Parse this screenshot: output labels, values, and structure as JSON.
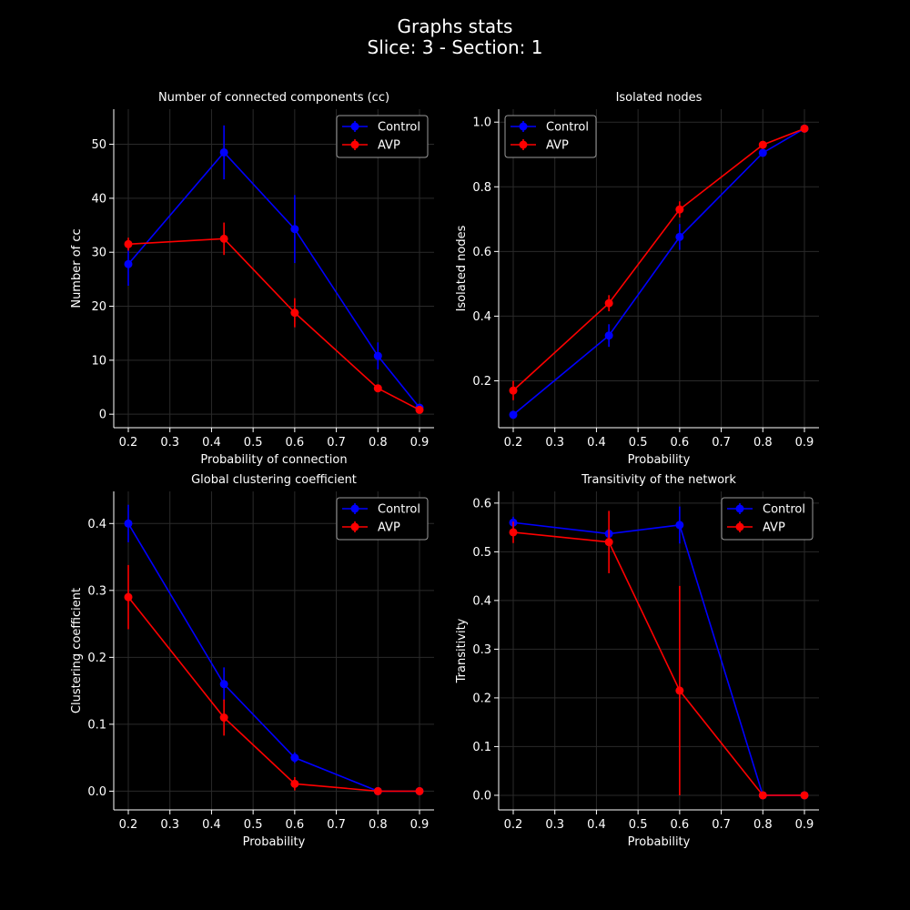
{
  "figure": {
    "title_line1": "Graphs stats",
    "title_line2": "Slice: 3  -  Section: 1"
  },
  "colors": {
    "Control": "#0000ff",
    "AVP": "#ff0000",
    "grid": "#2a2a2a",
    "axis": "#ffffff"
  },
  "chart_data": [
    {
      "type": "line",
      "title": "Number of connected components (cc)",
      "xlabel": "Probability of connection",
      "ylabel": "Number of cc",
      "x": [
        0.2,
        0.43,
        0.6,
        0.8,
        0.9
      ],
      "xlim": [
        0.165,
        0.935
      ],
      "ylim": [
        -2.5,
        56.5
      ],
      "xticks": [
        "0.2",
        "0.3",
        "0.4",
        "0.5",
        "0.6",
        "0.7",
        "0.8",
        "0.9"
      ],
      "yticks": [
        0,
        10,
        20,
        30,
        40,
        50
      ],
      "legend": "top-right",
      "grid": true,
      "series": [
        {
          "name": "Control",
          "values": [
            27.8,
            48.5,
            34.3,
            10.8,
            1.2
          ],
          "errors": [
            4.0,
            5.0,
            6.3,
            2.5,
            0.6
          ]
        },
        {
          "name": "AVP",
          "values": [
            31.5,
            32.5,
            18.8,
            4.8,
            0.8
          ],
          "errors": [
            1.2,
            3.0,
            2.7,
            0.7,
            0.3
          ]
        }
      ]
    },
    {
      "type": "line",
      "title": "Isolated nodes",
      "xlabel": "Probability",
      "ylabel": "Isolated nodes",
      "x": [
        0.2,
        0.43,
        0.6,
        0.8,
        0.9
      ],
      "xlim": [
        0.165,
        0.935
      ],
      "ylim": [
        0.055,
        1.04
      ],
      "xticks": [
        "0.2",
        "0.3",
        "0.4",
        "0.5",
        "0.6",
        "0.7",
        "0.8",
        "0.9"
      ],
      "yticks": [
        0.2,
        0.4,
        0.6,
        0.8,
        1.0
      ],
      "legend": "top-left",
      "grid": true,
      "series": [
        {
          "name": "Control",
          "values": [
            0.095,
            0.34,
            0.645,
            0.905,
            0.98
          ],
          "errors": [
            0.005,
            0.035,
            0.04,
            0.01,
            0.005
          ]
        },
        {
          "name": "AVP",
          "values": [
            0.17,
            0.44,
            0.73,
            0.93,
            0.98
          ],
          "errors": [
            0.03,
            0.025,
            0.025,
            0.01,
            0.005
          ]
        }
      ]
    },
    {
      "type": "line",
      "title": "Global clustering coefficient",
      "xlabel": "Probability",
      "ylabel": "Clustering coefficient",
      "x": [
        0.2,
        0.43,
        0.6,
        0.8,
        0.9
      ],
      "xlim": [
        0.165,
        0.935
      ],
      "ylim": [
        -0.028,
        0.448
      ],
      "xticks": [
        "0.2",
        "0.3",
        "0.4",
        "0.5",
        "0.6",
        "0.7",
        "0.8",
        "0.9"
      ],
      "yticks": [
        0.0,
        0.1,
        0.2,
        0.3,
        0.4
      ],
      "legend": "top-right",
      "grid": true,
      "series": [
        {
          "name": "Control",
          "values": [
            0.4,
            0.16,
            0.05,
            0.0,
            0.0
          ],
          "errors": [
            0.028,
            0.025,
            0.008,
            0.0,
            0.0
          ]
        },
        {
          "name": "AVP",
          "values": [
            0.29,
            0.11,
            0.011,
            0.0,
            0.0
          ],
          "errors": [
            0.048,
            0.027,
            0.01,
            0.0,
            0.0
          ]
        }
      ]
    },
    {
      "type": "line",
      "title": "Transitivity of the network",
      "xlabel": "Probability",
      "ylabel": "Transitivity",
      "x": [
        0.2,
        0.43,
        0.6,
        0.8,
        0.9
      ],
      "xlim": [
        0.165,
        0.935
      ],
      "ylim": [
        -0.03,
        0.624
      ],
      "xticks": [
        "0.2",
        "0.3",
        "0.4",
        "0.5",
        "0.6",
        "0.7",
        "0.8",
        "0.9"
      ],
      "yticks": [
        0.0,
        0.1,
        0.2,
        0.3,
        0.4,
        0.5,
        0.6
      ],
      "legend": "top-right",
      "grid": true,
      "series": [
        {
          "name": "Control",
          "values": [
            0.56,
            0.537,
            0.555,
            0.0,
            0.0
          ],
          "errors": [
            0.012,
            0.01,
            0.038,
            0.0,
            0.0
          ]
        },
        {
          "name": "AVP",
          "values": [
            0.54,
            0.52,
            0.215,
            0.0,
            0.0
          ],
          "errors": [
            0.022,
            0.064,
            0.215,
            0.0,
            0.0
          ]
        }
      ]
    }
  ]
}
